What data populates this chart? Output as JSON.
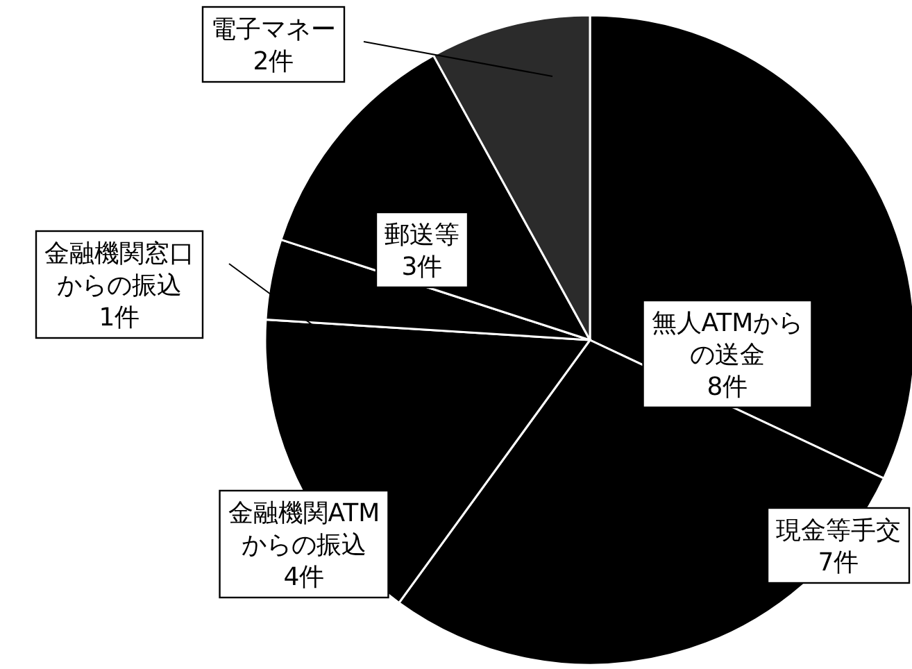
{
  "chart_data": {
    "type": "pie",
    "categories": [
      "無人ATMからの送金",
      "現金等手交",
      "金融機関ATMからの振込",
      "金融機関窓口からの振込",
      "郵送等",
      "電子マネー"
    ],
    "values": [
      8,
      7,
      4,
      1,
      3,
      2
    ],
    "value_labels": [
      "8件",
      "7件",
      "4件",
      "1件",
      "3件",
      "2件"
    ],
    "colors": [
      "#000000",
      "#000000",
      "#000000",
      "#000000",
      "#000000",
      "#2b2b2b"
    ]
  }
}
